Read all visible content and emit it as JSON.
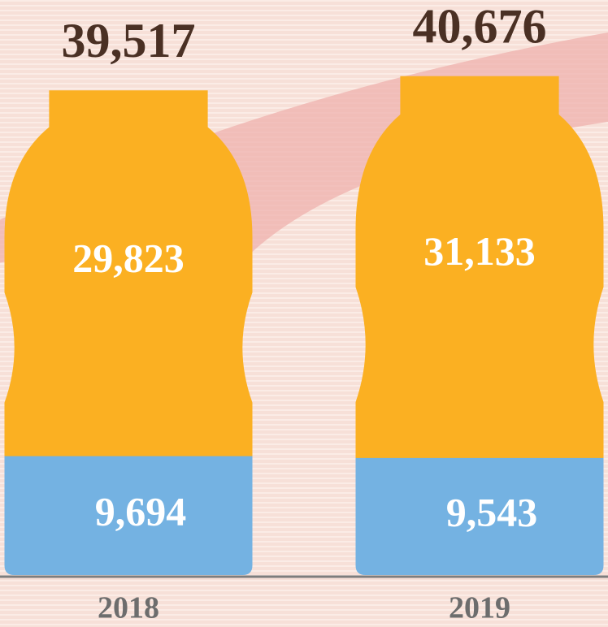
{
  "chart_data": {
    "type": "bottle-stack",
    "categories": [
      "2018",
      "2019"
    ],
    "series": [
      {
        "color": "#74b2e2",
        "values": [
          9694,
          9543
        ],
        "value_labels": [
          "9,694",
          "9,543"
        ]
      },
      {
        "color": "#fbb022",
        "values": [
          29823,
          31133
        ],
        "value_labels": [
          "29,823",
          "31,133"
        ]
      }
    ],
    "totals": [
      39517,
      40676
    ],
    "total_value_labels": [
      "39,517",
      "40,676"
    ]
  }
}
